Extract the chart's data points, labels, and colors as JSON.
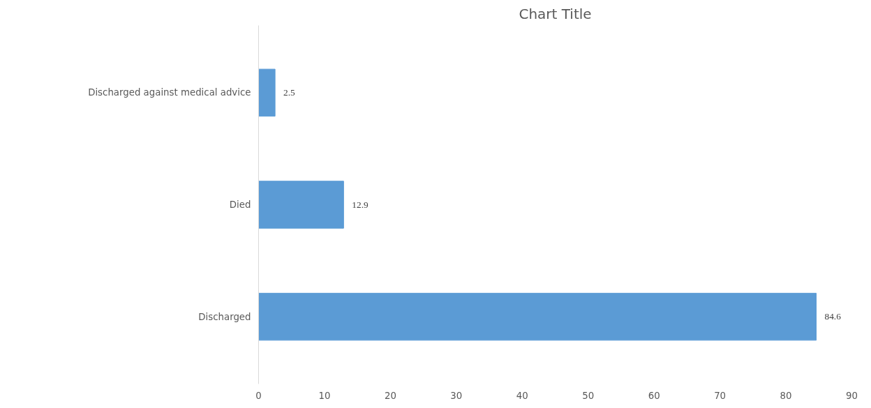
{
  "chart_data": {
    "type": "bar",
    "orientation": "horizontal",
    "title": "Chart Title",
    "categories": [
      "Discharged against medical advice",
      "Died",
      "Discharged"
    ],
    "values": [
      2.5,
      12.9,
      84.6
    ],
    "color": "#5b9bd5",
    "xlim": [
      0,
      90
    ],
    "xticks": [
      0,
      10,
      20,
      30,
      40,
      50,
      60,
      70,
      80,
      90
    ],
    "grid": false,
    "data_labels": true
  }
}
